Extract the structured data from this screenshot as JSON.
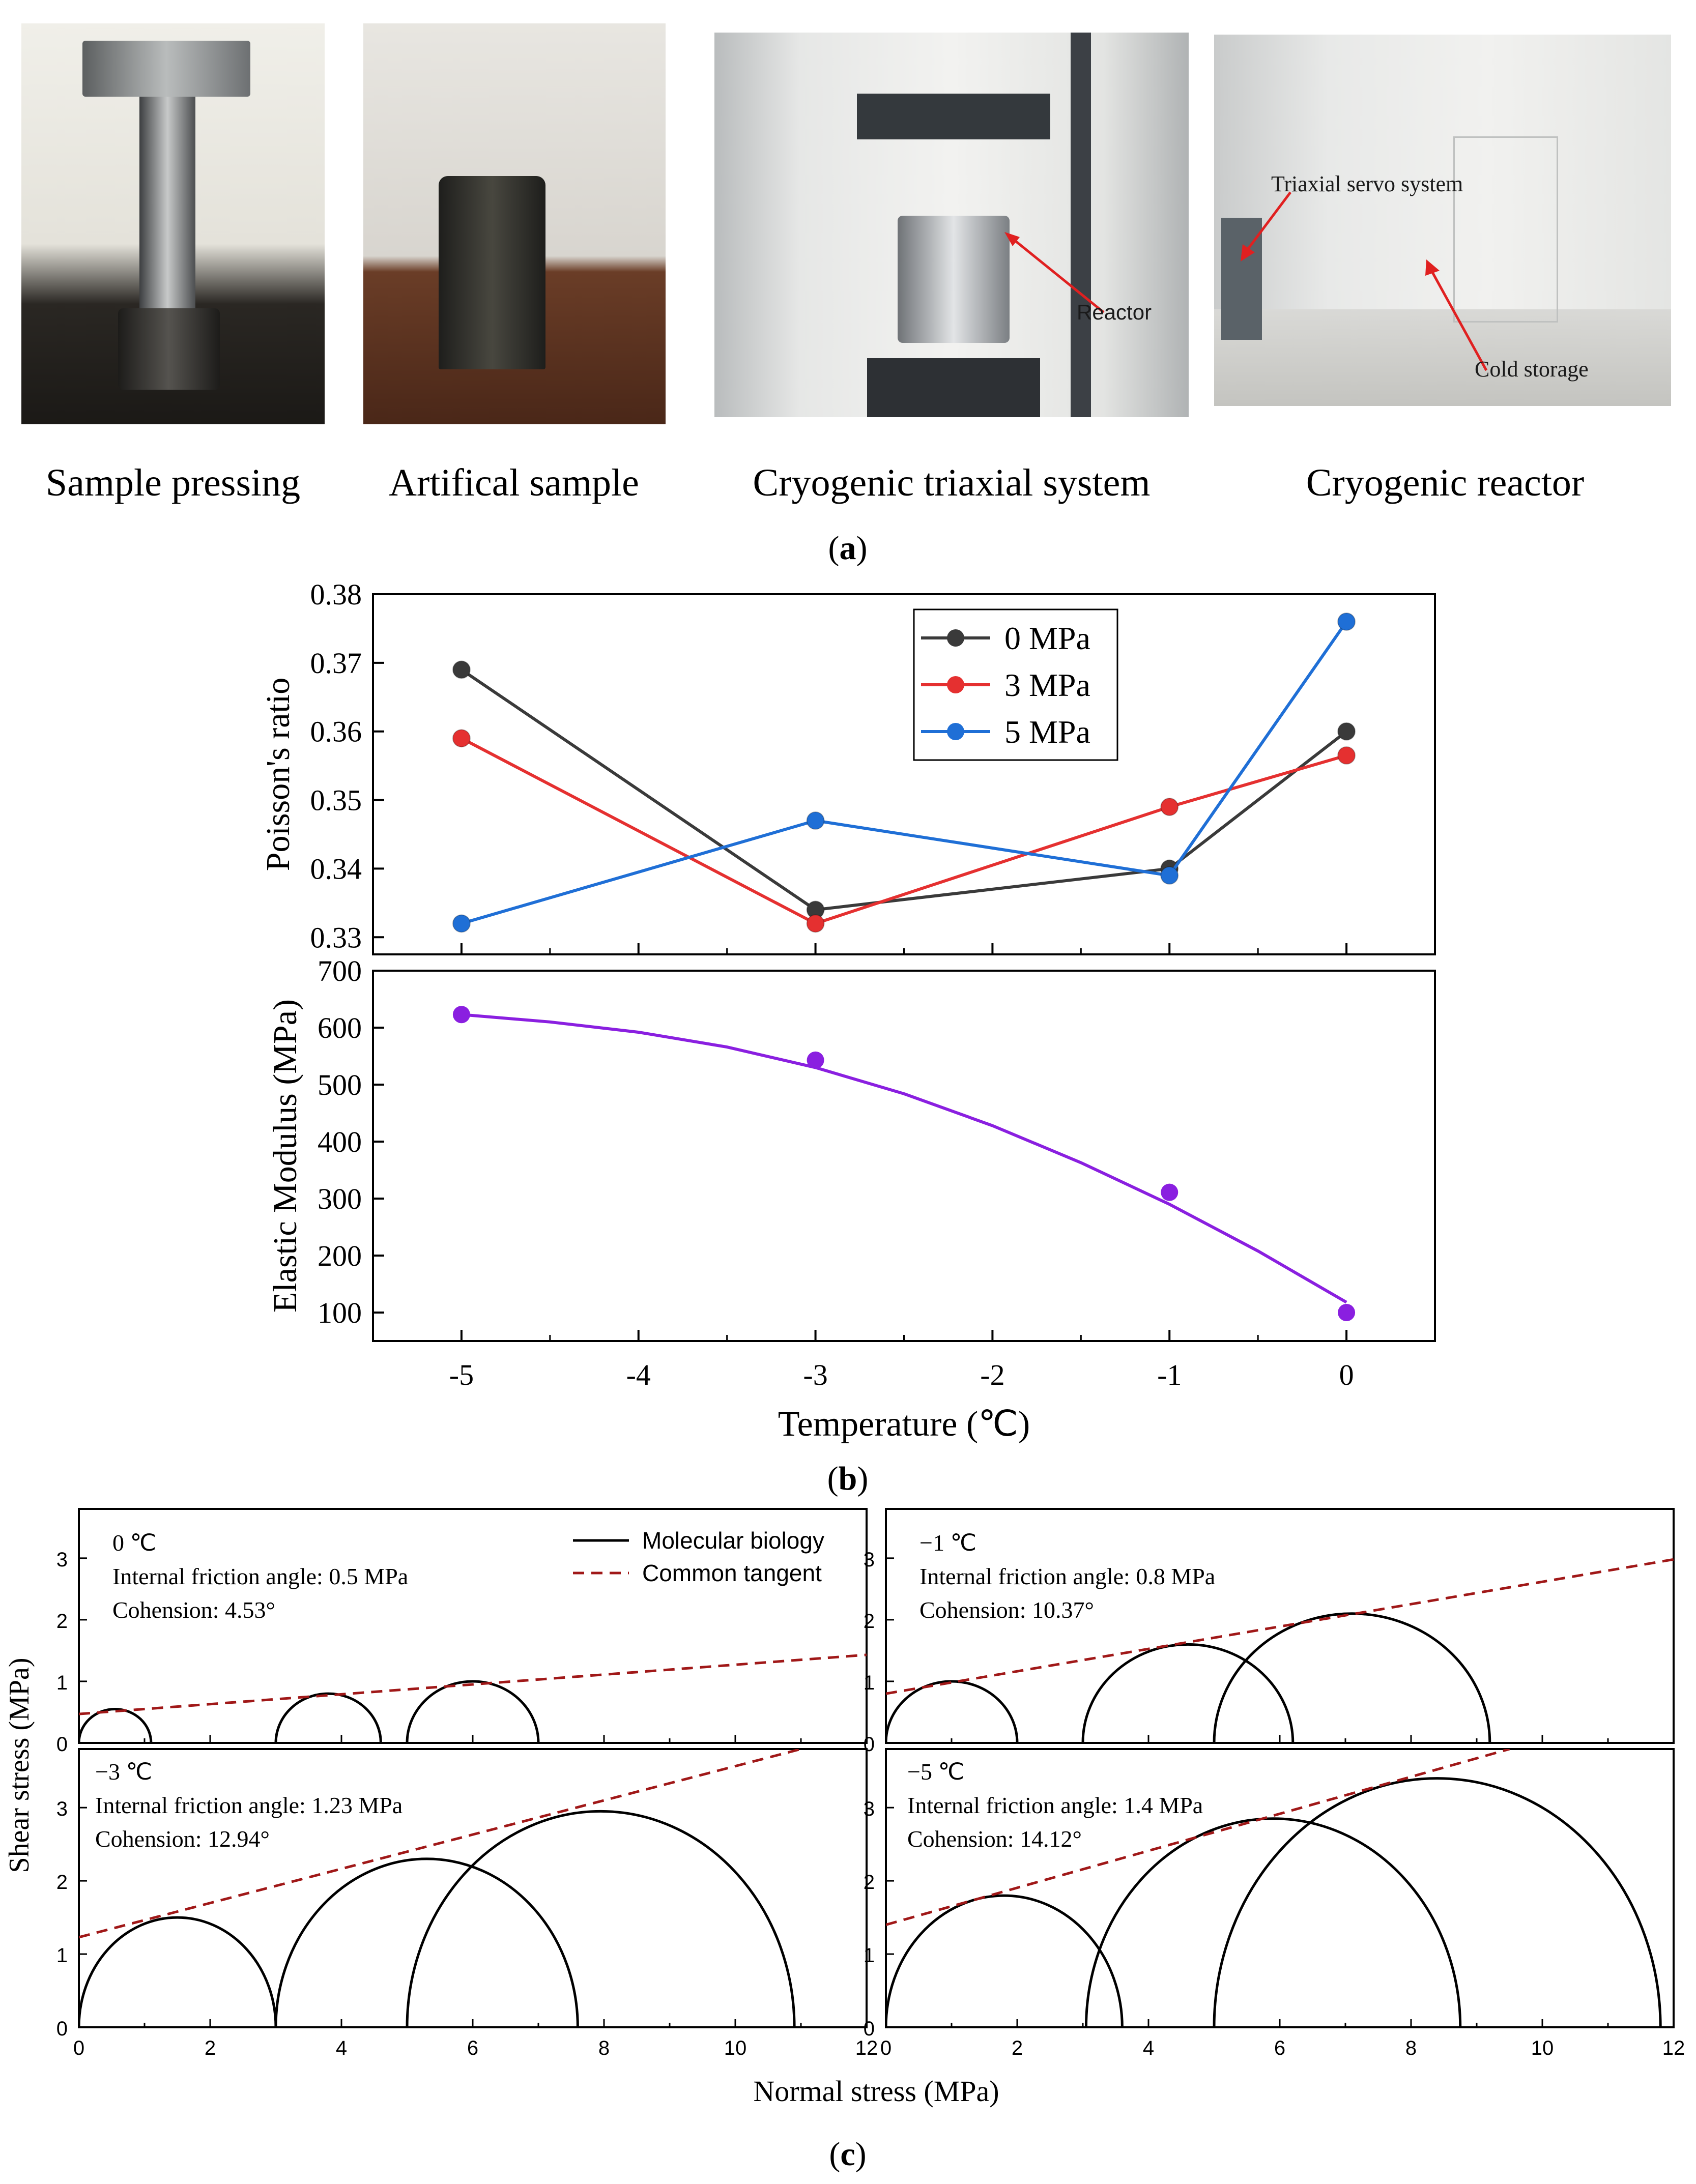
{
  "panel_a": {
    "photos": [
      {
        "name": "sample-pressing-photo",
        "caption": "Sample pressing"
      },
      {
        "name": "artificial-sample-photo",
        "caption": "Artifical sample"
      },
      {
        "name": "cryogenic-triaxial-photo",
        "caption": "Cryogenic triaxial system",
        "note": "Reactor"
      },
      {
        "name": "cryogenic-reactor-photo",
        "caption": "Cryogenic reactor",
        "note_1": "Triaxial servo system",
        "note_2": "Cold storage"
      }
    ],
    "label_letter": "a"
  },
  "panel_b": {
    "label_letter": "b",
    "xlabel": "Temperature (℃)"
  },
  "panel_c": {
    "label_letter": "c",
    "xlabel": "Normal stress (MPa)",
    "ylabel": "Shear stress (MPa)",
    "legend": [
      "Molecular biology",
      "Common tangent"
    ]
  },
  "colors": {
    "series_0MPa": "#3a3a3a",
    "series_3MPa": "#e53030",
    "series_5MPa": "#1f6fd6",
    "modulus": "#8a1fe0",
    "tangent": "#a01818"
  },
  "chart_data": [
    {
      "id": "poisson",
      "type": "line",
      "ylabel": "Poisson's ratio",
      "ylim": [
        0.3275,
        0.38
      ],
      "yticks": [
        0.33,
        0.34,
        0.35,
        0.36,
        0.37,
        0.38
      ],
      "ytick_labels": [
        "0.33",
        "0.34",
        "0.35",
        "0.36",
        "0.37",
        "0.38"
      ],
      "xlim": [
        -5.5,
        0.5
      ],
      "x": [
        -5,
        -3,
        -1,
        0
      ],
      "legend_position": "top-right",
      "series": [
        {
          "name": "0 MPa",
          "values": [
            0.369,
            0.334,
            0.34,
            0.36
          ]
        },
        {
          "name": "3 MPa",
          "values": [
            0.359,
            0.332,
            0.349,
            0.3565
          ]
        },
        {
          "name": "5 MPa",
          "values": [
            0.332,
            0.347,
            0.339,
            0.376
          ]
        }
      ]
    },
    {
      "id": "modulus",
      "type": "scatter",
      "ylabel": "Elastic Modulus (MPa)",
      "ylim": [
        50,
        700
      ],
      "yticks": [
        100,
        200,
        300,
        400,
        500,
        600,
        700
      ],
      "ytick_labels": [
        "100",
        "200",
        "300",
        "400",
        "500",
        "600",
        "700"
      ],
      "xlim": [
        -5.5,
        0.5
      ],
      "xticks": [
        -5,
        -4,
        -3,
        -2,
        -1,
        0
      ],
      "xtick_labels": [
        "-5",
        "-4",
        "-3",
        "-2",
        "-1",
        "0"
      ],
      "x": [
        -5,
        -3,
        -1,
        0
      ],
      "values": [
        623,
        543,
        311,
        100
      ],
      "fit_curve": {
        "x": [
          -5,
          -4.5,
          -4,
          -3.5,
          -3,
          -2.5,
          -2,
          -1.5,
          -1,
          -0.5,
          0
        ],
        "y": [
          623,
          610,
          592,
          566,
          530,
          484,
          428,
          363,
          290,
          208,
          118
        ]
      }
    },
    {
      "id": "mohr-0",
      "type": "line",
      "annotation": [
        "0 ℃",
        "Internal friction angle: 0.5 MPa",
        "Cohension: 4.53°"
      ],
      "xlim": [
        0,
        12
      ],
      "ylim": [
        0,
        3.8
      ],
      "yticks": [
        0,
        1,
        2,
        3
      ],
      "ytick_labels": [
        "0",
        "1",
        "2",
        "3"
      ],
      "circles": [
        {
          "center": 0.55,
          "radius": 0.55
        },
        {
          "center": 3.8,
          "radius": 0.8
        },
        {
          "center": 6.0,
          "radius": 1.0
        }
      ],
      "tangent": {
        "x": [
          0,
          12
        ],
        "y": [
          0.47,
          1.43
        ]
      }
    },
    {
      "id": "mohr-minus1",
      "type": "line",
      "annotation": [
        "−1 ℃",
        "Internal friction angle: 0.8 MPa",
        "Cohension: 10.37°"
      ],
      "xlim": [
        0,
        12
      ],
      "ylim": [
        0,
        3.8
      ],
      "yticks": [
        0,
        1,
        2,
        3
      ],
      "ytick_labels": [
        "0",
        "1",
        "2",
        "3"
      ],
      "circles": [
        {
          "center": 1.0,
          "radius": 1.0
        },
        {
          "center": 4.6,
          "radius": 1.6
        },
        {
          "center": 7.1,
          "radius": 2.1
        }
      ],
      "tangent": {
        "x": [
          0,
          12
        ],
        "y": [
          0.8,
          2.98
        ]
      }
    },
    {
      "id": "mohr-minus3",
      "type": "line",
      "annotation": [
        "−3 ℃",
        "Internal friction angle: 1.23 MPa",
        "Cohension: 12.94°"
      ],
      "xlim": [
        0,
        12
      ],
      "ylim": [
        0,
        3.8
      ],
      "yticks": [
        0,
        1,
        2,
        3
      ],
      "ytick_labels": [
        "0",
        "1",
        "2",
        "3"
      ],
      "xticks": [
        0,
        2,
        4,
        6,
        8,
        10,
        12
      ],
      "xtick_labels": [
        "0",
        "2",
        "4",
        "6",
        "8",
        "10",
        "12"
      ],
      "circles": [
        {
          "center": 1.5,
          "radius": 1.5
        },
        {
          "center": 5.3,
          "radius": 2.3
        },
        {
          "center": 7.95,
          "radius": 2.95
        }
      ],
      "tangent": {
        "x": [
          0,
          11.0
        ],
        "y": [
          1.23,
          3.8
        ]
      }
    },
    {
      "id": "mohr-minus5",
      "type": "line",
      "annotation": [
        "−5 ℃",
        "Internal friction angle: 1.4 MPa",
        "Cohension: 14.12°"
      ],
      "xlim": [
        0,
        12
      ],
      "ylim": [
        0,
        3.8
      ],
      "yticks": [
        0,
        1,
        2,
        3
      ],
      "ytick_labels": [
        "0",
        "1",
        "2",
        "3"
      ],
      "xticks": [
        0,
        2,
        4,
        6,
        8,
        10,
        12
      ],
      "xtick_labels": [
        "0",
        "2",
        "4",
        "6",
        "8",
        "10",
        "12"
      ],
      "circles": [
        {
          "center": 1.8,
          "radius": 1.8
        },
        {
          "center": 5.9,
          "radius": 2.85
        },
        {
          "center": 8.4,
          "radius": 3.4
        }
      ],
      "tangent": {
        "x": [
          0,
          9.5
        ],
        "y": [
          1.4,
          3.8
        ]
      }
    }
  ]
}
